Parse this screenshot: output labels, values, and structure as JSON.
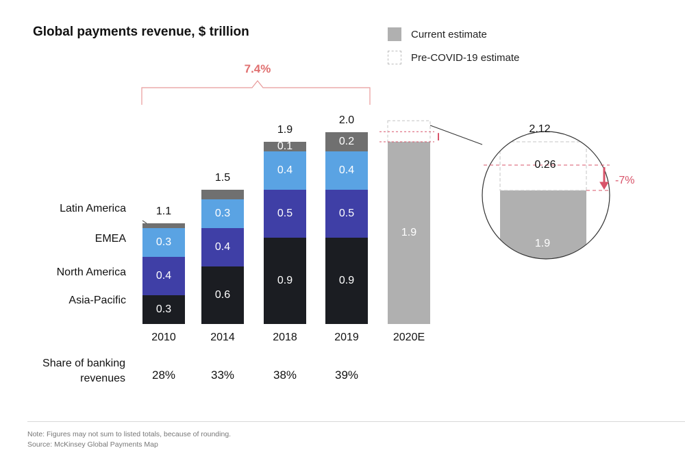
{
  "colors": {
    "asia_pacific": "#1b1d22",
    "north_america": "#3f3fa6",
    "emea": "#5aa3e3",
    "latin_america": "#707070",
    "current_estimate": "#b0b0b0",
    "bracket": "#e89a9a",
    "cagr": "#e07070",
    "drop": "#d8546a"
  },
  "chart_data": {
    "type": "bar",
    "stacked": true,
    "title": "Global payments revenue, $ trillion",
    "categories": [
      "2010",
      "2014",
      "2018",
      "2019"
    ],
    "series": [
      {
        "name": "Asia-Pacific",
        "values": [
          0.3,
          0.6,
          0.9,
          0.9
        ],
        "labels": [
          "0.3",
          "0.6",
          "0.9",
          "0.9"
        ]
      },
      {
        "name": "North America",
        "values": [
          0.4,
          0.4,
          0.5,
          0.5
        ],
        "labels": [
          "0.4",
          "0.4",
          "0.5",
          "0.5"
        ]
      },
      {
        "name": "EMEA",
        "values": [
          0.3,
          0.3,
          0.4,
          0.4
        ],
        "labels": [
          "0.3",
          "0.3",
          "0.4",
          "0.4"
        ]
      },
      {
        "name": "Latin America",
        "values": [
          0.05,
          0.1,
          0.1,
          0.2
        ],
        "labels": [
          "",
          "",
          "0.1",
          "0.2"
        ]
      }
    ],
    "totals": [
      "1.1",
      "1.5",
      "1.9",
      "2.0"
    ],
    "region_labels": [
      "Latin America",
      "EMEA",
      "North America",
      "Asia-Pacific"
    ],
    "estimate": {
      "category": "2020E",
      "current": 1.9,
      "current_label": "1.9",
      "pre_covid": 2.12,
      "pre_covid_label": "2.12",
      "gap_label": "0.26",
      "drop_label": "-7%"
    },
    "cagr_label": "7.4%",
    "legend": [
      "Current estimate",
      "Pre-COVID-19 estimate"
    ],
    "share_title": "Share of banking revenues",
    "share_values": [
      "28%",
      "33%",
      "38%",
      "39%"
    ],
    "ylim": [
      0,
      2.4
    ]
  },
  "notes": {
    "note": "Note: Figures may not sum to listed totals, because of rounding.",
    "source": "Source: McKinsey Global Payments Map"
  }
}
